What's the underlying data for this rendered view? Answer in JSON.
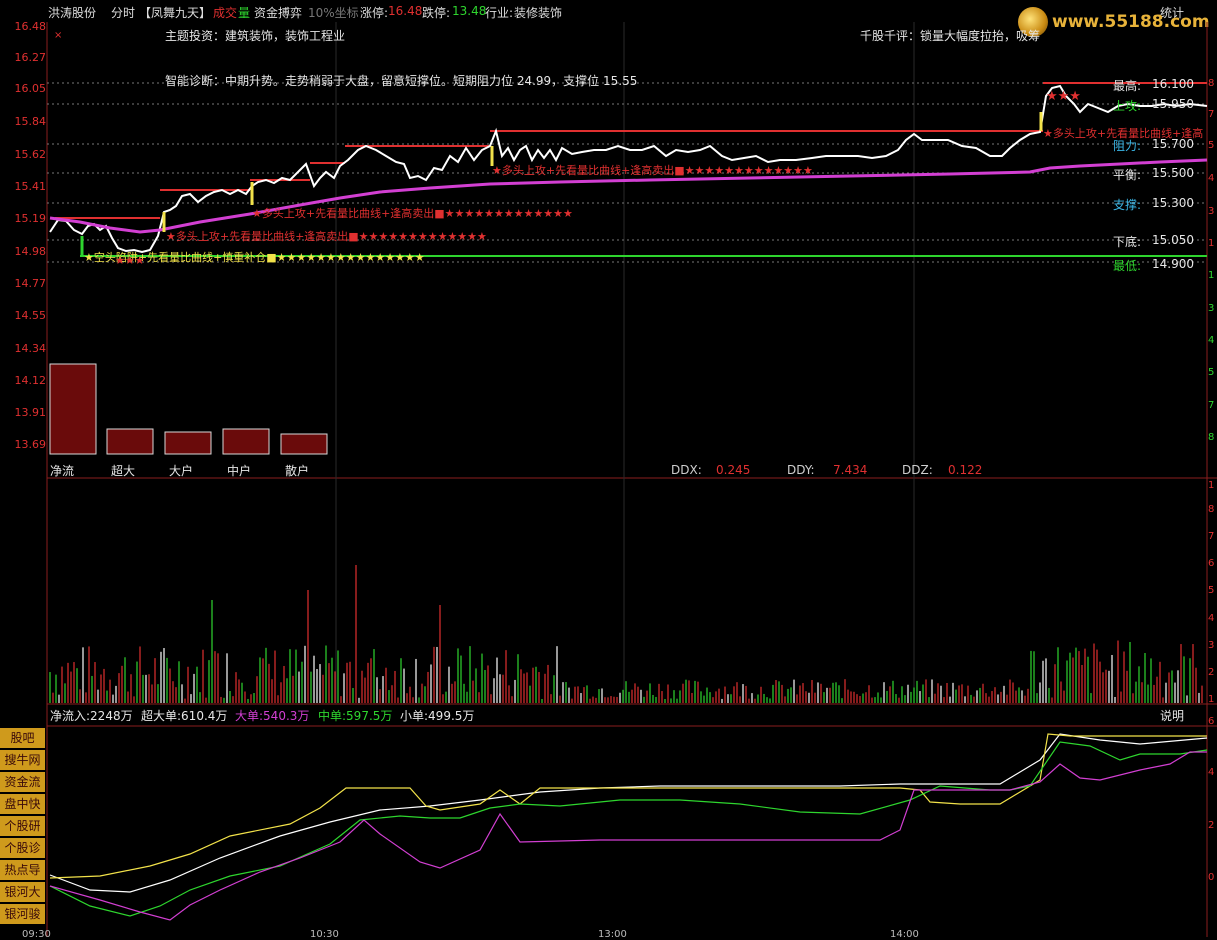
{
  "header": {
    "stock": "洪涛股份",
    "mode": "分时",
    "indicator": "【凤舞九天】",
    "vol_a": "成交",
    "vol_b": "量",
    "fund": "资金搏弈",
    "coord": "10%坐标",
    "up_limit_label": "涨停:",
    "up_limit": "16.48",
    "down_limit_label": "跌停:",
    "down_limit": "13.48",
    "industry_label": "行业:",
    "industry": "装修装饰",
    "stats": "统计",
    "watermark": "www.55188.com"
  },
  "info": {
    "theme": "主题投资：建筑装饰，装饰工程业",
    "comment": "千股千评：锁量大幅度拉抬，吸筹",
    "diagnosis": "智能诊断：中期升势。走势稍弱于大盘，留意短撑位。短期阻力位 24.99，支撑位 15.55"
  },
  "price_axis": [
    "16.48",
    "16.27",
    "16.05",
    "15.84",
    "15.62",
    "15.41",
    "15.19",
    "14.98",
    "14.77",
    "14.55",
    "14.34",
    "14.12",
    "13.91",
    "13.69"
  ],
  "right_axis_top": [
    "8",
    "7",
    "5",
    "4",
    "3",
    "1",
    "1",
    "3",
    "4",
    "5",
    "7",
    "8"
  ],
  "levels": [
    {
      "label": "最高:",
      "value": "16.100",
      "color": "#e6e6e6"
    },
    {
      "label": "上攻:",
      "value": "15.950",
      "color": "#2ed52e"
    },
    {
      "label": "阻力:",
      "value": "15.700",
      "color": "#3ab6e6"
    },
    {
      "label": "平衡:",
      "value": "15.500",
      "color": "#e6e6e6"
    },
    {
      "label": "支撑:",
      "value": "15.300",
      "color": "#3ab6e6"
    },
    {
      "label": "下底:",
      "value": "15.050",
      "color": "#e6e6e6"
    },
    {
      "label": "最低:",
      "value": "14.900",
      "color": "#2ed52e"
    }
  ],
  "signals": {
    "s1": "★空头陷阱+先看量比曲线+慎重补仓■★★★★★★★★★★★★★★★",
    "s2": "★多头上攻+先看量比曲线+逢高卖出■★★★★★★★★★★★★★",
    "s3": "★多头上攻+先看量比曲线+逢高卖出■★★★★★★★★★★★★★",
    "s4": "★多头上攻+先看量比曲线+逢高卖出■★★★★★★★★★★★★★",
    "s5": "★多头上攻+先看量比曲线+逢高"
  },
  "fund_bars": {
    "labels": [
      "净流",
      "超大",
      "大户",
      "中户",
      "散户"
    ],
    "values": [
      90,
      25,
      22,
      25,
      20
    ]
  },
  "ddx": {
    "ddx_label": "DDX:",
    "ddx": "0.245",
    "ddy_label": "DDY:",
    "ddy": "7.434",
    "ddz_label": "DDZ:",
    "ddz": "0.122"
  },
  "vol_axis": [
    "1",
    "8",
    "7",
    "6",
    "5",
    "4",
    "3",
    "2",
    "1"
  ],
  "flow": {
    "net": "净流入:2248万",
    "super": "超大单:610.4万",
    "big": "大单:540.3万",
    "mid": "中单:597.5万",
    "small": "小单:499.5万",
    "help": "说明"
  },
  "flow_axis": [
    "6",
    "4",
    "2",
    "0"
  ],
  "time_axis": [
    "09:30",
    "10:30",
    "13:00",
    "14:00"
  ],
  "nav": [
    "股吧",
    "搜牛网",
    "资金流向",
    "盘中快讯",
    "个股研报",
    "个股诊断",
    "热点导航",
    "银河大势",
    "银河骏马"
  ],
  "colors": {
    "up": "#e03030",
    "down": "#2ed52e",
    "price": "#ffffff",
    "avg": "#d23fd2",
    "grid": "#8a1e1e",
    "nav_bg": "#cf9a1c"
  }
}
